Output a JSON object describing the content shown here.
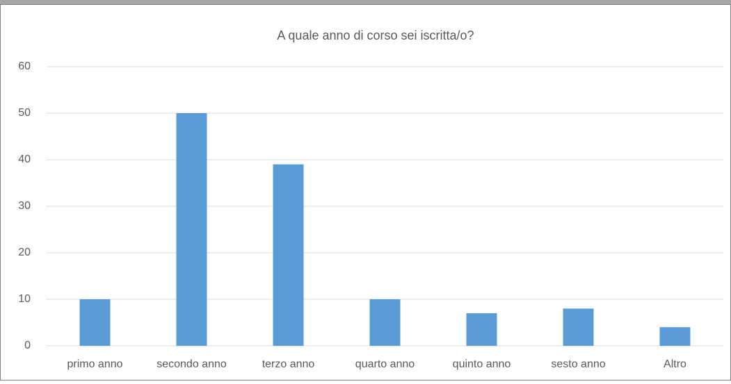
{
  "chart_data": {
    "type": "bar",
    "title": "A quale anno di corso sei iscritta/o?",
    "categories": [
      "primo anno",
      "secondo anno",
      "terzo anno",
      "quarto anno",
      "quinto anno",
      "sesto anno",
      "Altro"
    ],
    "values": [
      10,
      50,
      39,
      10,
      7,
      8,
      4
    ],
    "color": "#5b9bd5",
    "ylim": [
      0,
      60
    ],
    "yticks": [
      0,
      10,
      20,
      30,
      40,
      50,
      60
    ],
    "grid": true
  }
}
